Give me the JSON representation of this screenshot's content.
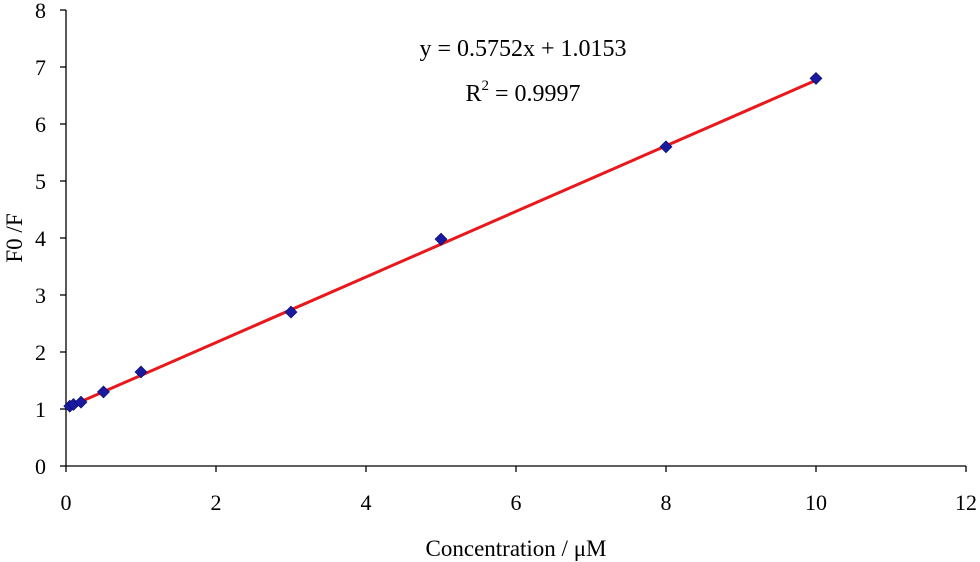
{
  "chart_data": {
    "type": "scatter",
    "title": "",
    "xlabel": "Concentration / μM",
    "ylabel": "F0 /F",
    "xlim": [
      0,
      12
    ],
    "ylim": [
      0,
      8
    ],
    "xticks": [
      0,
      2,
      4,
      6,
      8,
      10,
      12
    ],
    "yticks": [
      0,
      1,
      2,
      3,
      4,
      5,
      6,
      7,
      8
    ],
    "grid": false,
    "legend": "none",
    "series": [
      {
        "marker": "diamond",
        "color": "#1a1aa0",
        "x": [
          0.05,
          0.1,
          0.2,
          0.5,
          1,
          3,
          5,
          8,
          10
        ],
        "y": [
          1.05,
          1.08,
          1.12,
          1.3,
          1.65,
          2.7,
          3.98,
          5.6,
          6.8
        ]
      }
    ],
    "trendline": {
      "slope": 0.5752,
      "intercept": 1.0153,
      "x_range": [
        0.05,
        10
      ],
      "color": "#e8181c",
      "equation": "y = 0.5752x + 1.0153",
      "r2_prefix": "R",
      "r2_exponent": "2",
      "r2_value": " = 0.9997"
    }
  }
}
